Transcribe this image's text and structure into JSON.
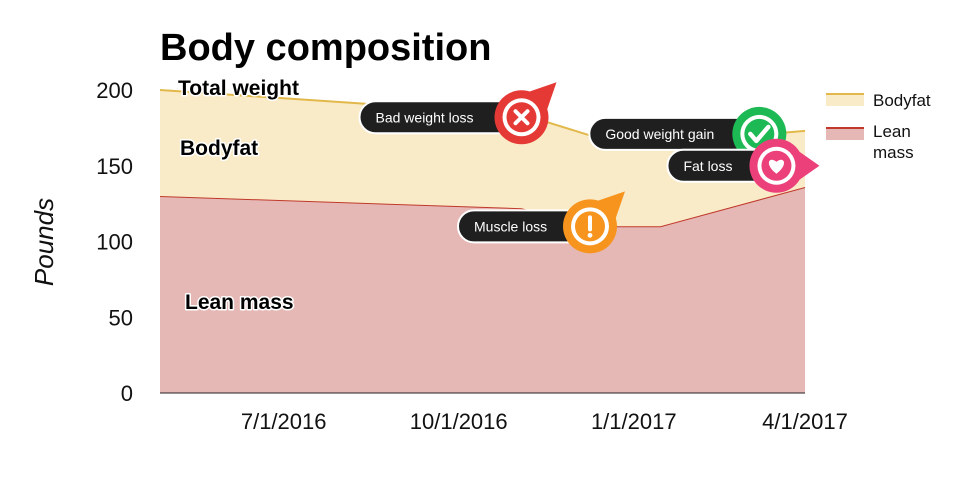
{
  "chart_data": {
    "type": "area",
    "title": "Body composition",
    "xlabel": "",
    "ylabel": "Pounds",
    "x_ticks": [
      "7/1/2016",
      "10/1/2016",
      "1/1/2017",
      "4/1/2017"
    ],
    "ylim": [
      0,
      200
    ],
    "y_ticks": [
      0,
      50,
      100,
      150,
      200
    ],
    "xlim": [
      "2016-04-27",
      "2017-04-01"
    ],
    "x": [
      "2016-04-27",
      "2016-11-03",
      "2016-12-09",
      "2017-01-15",
      "2017-04-01"
    ],
    "series": [
      {
        "name": "Lean mass",
        "values": [
          130,
          122,
          110,
          110,
          136
        ],
        "color": "#e6b8b5",
        "line_color": "#c0392b"
      },
      {
        "name": "Bodyfat",
        "values": [
          70,
          62,
          60,
          55,
          37
        ],
        "color": "#faebc8",
        "line_color": "#e2b84a"
      }
    ],
    "stacked": true,
    "legend_position": "right",
    "grid": false,
    "region_labels": {
      "total": "Total weight",
      "bodyfat": "Bodyfat",
      "lean": "Lean mass"
    },
    "legend": [
      {
        "label": "Bodyfat",
        "color": "#faebc8",
        "line_color": "#e2b84a"
      },
      {
        "label_lines": [
          "Lean",
          "mass"
        ],
        "color": "#e6b8b5",
        "line_color": "#c0392b"
      }
    ],
    "annotations": [
      {
        "text": "Bad weight loss",
        "icon": "x-icon",
        "color": "#e53935",
        "x": "2016-11-03",
        "y": 182
      },
      {
        "text": "Muscle loss",
        "icon": "exclamation-icon",
        "color": "#f7941d",
        "x": "2016-12-09",
        "y": 110
      },
      {
        "text": "Good weight gain",
        "icon": "check-icon",
        "color": "#1db954",
        "x": "2017-03-08",
        "y": 171
      },
      {
        "text": "Fat loss",
        "icon": "heart-icon",
        "color": "#ec407a",
        "x": "2017-03-17",
        "y": 150
      }
    ]
  }
}
